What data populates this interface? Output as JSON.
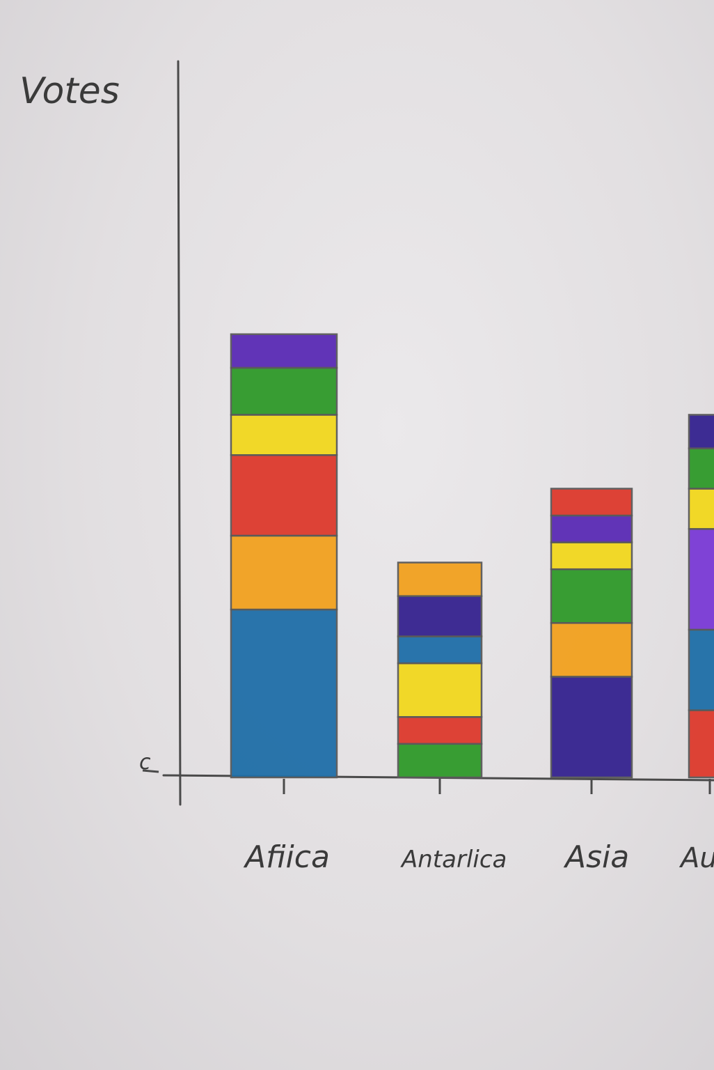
{
  "chart_data": {
    "type": "bar",
    "stacked": true,
    "ylabel": "Votes",
    "y_tick_labels": [
      "c"
    ],
    "categories": [
      "Afiica",
      "Antarlica",
      "Asia",
      "Au"
    ],
    "stacks": [
      {
        "category": "Afiica",
        "segments": [
          {
            "color": "#1f6fa8",
            "value": 25
          },
          {
            "color": "#f2a11f",
            "value": 11
          },
          {
            "color": "#dd3a2d",
            "value": 12
          },
          {
            "color": "#f2d81e",
            "value": 6
          },
          {
            "color": "#2f9a2a",
            "value": 7
          },
          {
            "color": "#5a2bb5",
            "value": 5
          }
        ]
      },
      {
        "category": "Antarlica",
        "segments": [
          {
            "color": "#2f9a2a",
            "value": 5
          },
          {
            "color": "#dd3a2d",
            "value": 4
          },
          {
            "color": "#f2d81e",
            "value": 8
          },
          {
            "color": "#1f6fa8",
            "value": 4
          },
          {
            "color": "#35238f",
            "value": 6
          },
          {
            "color": "#f2a11f",
            "value": 5
          }
        ]
      },
      {
        "category": "Asia",
        "segments": [
          {
            "color": "#35238f",
            "value": 15
          },
          {
            "color": "#f2a11f",
            "value": 8
          },
          {
            "color": "#2f9a2a",
            "value": 8
          },
          {
            "color": "#f2d81e",
            "value": 4
          },
          {
            "color": "#5a2bb5",
            "value": 4
          },
          {
            "color": "#dd3a2d",
            "value": 4
          }
        ]
      },
      {
        "category": "Au",
        "segments": [
          {
            "color": "#dd3a2d",
            "value": 10
          },
          {
            "color": "#1f6fa8",
            "value": 12
          },
          {
            "color": "#7a3ad6",
            "value": 15
          },
          {
            "color": "#f2d81e",
            "value": 6
          },
          {
            "color": "#2f9a2a",
            "value": 6
          },
          {
            "color": "#35238f",
            "value": 5
          }
        ]
      }
    ],
    "ylim": [
      0,
      70
    ],
    "grid": false,
    "legend": "none"
  }
}
